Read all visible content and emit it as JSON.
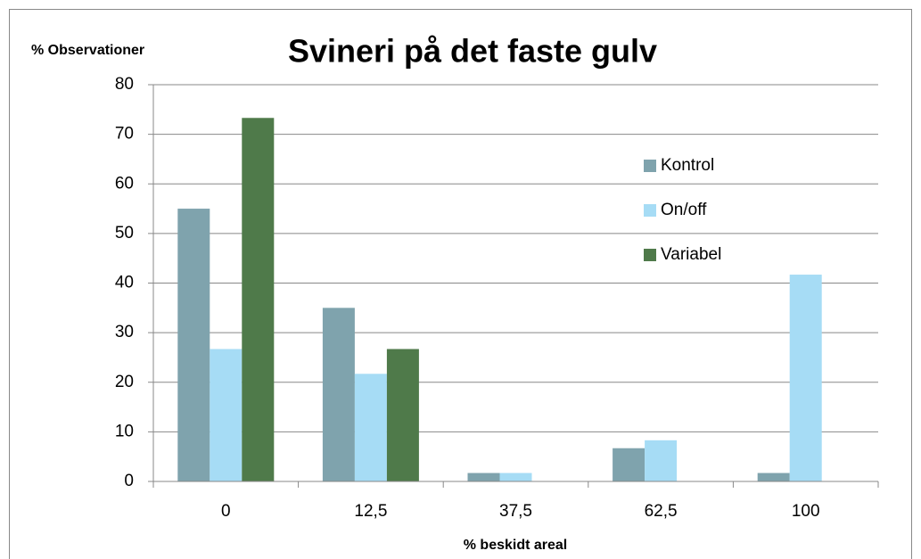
{
  "chart_data": {
    "type": "bar",
    "title": "Svineri på det faste gulv",
    "y_label": "% Observationer",
    "x_label": "% beskidt areal",
    "categories": [
      "0",
      "12,5",
      "37,5",
      "62,5",
      "100"
    ],
    "series": [
      {
        "name": "Kontrol",
        "color": "#7fa3ad",
        "values": [
          55,
          35,
          1.7,
          6.7,
          1.7
        ]
      },
      {
        "name": "On/off",
        "color": "#a6dcf5",
        "values": [
          26.7,
          21.7,
          1.7,
          8.3,
          41.7
        ]
      },
      {
        "name": "Variabel",
        "color": "#4f7a4a",
        "values": [
          73.3,
          26.7,
          0,
          0,
          0
        ]
      }
    ],
    "ylim": [
      0,
      80
    ],
    "yticks": [
      0,
      10,
      20,
      30,
      40,
      50,
      60,
      70,
      80
    ],
    "grid": true
  }
}
